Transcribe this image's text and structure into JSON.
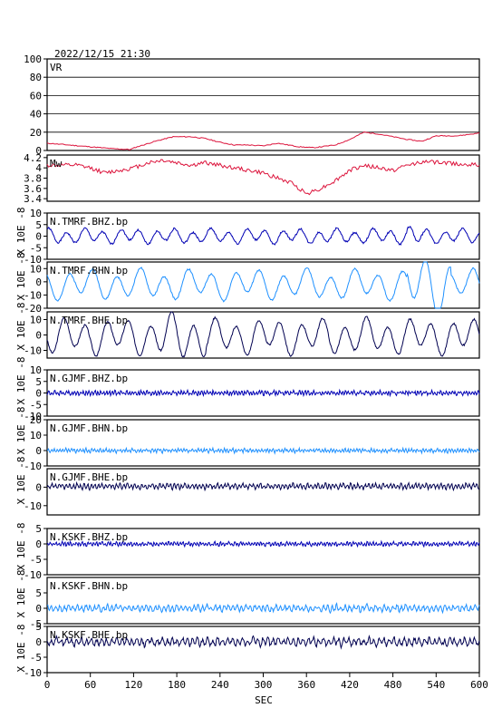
{
  "header": {
    "timestamp": "2022/12/15 21:30"
  },
  "axis": {
    "xlabel": "SEC",
    "xticks": [
      0,
      60,
      120,
      180,
      240,
      300,
      360,
      420,
      480,
      540,
      600
    ],
    "unit_label": "X 10E -8"
  },
  "colors": {
    "vr": "#dc143c",
    "mw": "#dc143c",
    "bhz": "#0000b4",
    "bhn": "#1e90ff",
    "bhe": "#000050"
  },
  "chart_data": [
    {
      "type": "line",
      "title": "VR",
      "ylim": [
        0,
        100
      ],
      "yticks": [
        0,
        20,
        40,
        60,
        80,
        100
      ],
      "grid": true,
      "points": [
        [
          0,
          8
        ],
        [
          30,
          6
        ],
        [
          60,
          4
        ],
        [
          90,
          2
        ],
        [
          115,
          1
        ],
        [
          125,
          4
        ],
        [
          150,
          10
        ],
        [
          175,
          15
        ],
        [
          200,
          15
        ],
        [
          220,
          13
        ],
        [
          240,
          9
        ],
        [
          260,
          6
        ],
        [
          280,
          6
        ],
        [
          300,
          5
        ],
        [
          320,
          8
        ],
        [
          335,
          6
        ],
        [
          350,
          4
        ],
        [
          370,
          3
        ],
        [
          400,
          6
        ],
        [
          420,
          12
        ],
        [
          440,
          20
        ],
        [
          460,
          18
        ],
        [
          480,
          15
        ],
        [
          500,
          12
        ],
        [
          520,
          10
        ],
        [
          540,
          16
        ],
        [
          570,
          16
        ],
        [
          600,
          19
        ]
      ]
    },
    {
      "type": "line",
      "title": "Mw",
      "ylim": [
        3.35,
        4.25
      ],
      "yticks": [
        3.4,
        3.6,
        3.8,
        4.0,
        4.2
      ],
      "points": [
        [
          0,
          4.05
        ],
        [
          40,
          4.05
        ],
        [
          60,
          4.0
        ],
        [
          80,
          3.9
        ],
        [
          100,
          3.95
        ],
        [
          120,
          4.0
        ],
        [
          140,
          4.1
        ],
        [
          160,
          4.15
        ],
        [
          180,
          4.1
        ],
        [
          200,
          4.05
        ],
        [
          220,
          4.1
        ],
        [
          240,
          4.05
        ],
        [
          260,
          4.0
        ],
        [
          280,
          3.95
        ],
        [
          300,
          3.9
        ],
        [
          320,
          3.8
        ],
        [
          340,
          3.7
        ],
        [
          360,
          3.5
        ],
        [
          380,
          3.6
        ],
        [
          400,
          3.75
        ],
        [
          420,
          3.95
        ],
        [
          440,
          4.05
        ],
        [
          460,
          4.0
        ],
        [
          480,
          3.95
        ],
        [
          500,
          4.05
        ],
        [
          520,
          4.12
        ],
        [
          550,
          4.1
        ],
        [
          600,
          4.05
        ]
      ]
    },
    {
      "type": "line",
      "title": "N.TMRF.BHZ.bp",
      "ylim": [
        -10,
        10
      ],
      "yticks": [
        -10,
        -5,
        0,
        5,
        10
      ],
      "amp": 2.5,
      "offset": 0,
      "period": 25,
      "noise": 0.4,
      "seed": 1,
      "burst": [
        [
          500,
          520,
          1.6
        ]
      ]
    },
    {
      "type": "line",
      "title": "N.TMRF.BHN.bp",
      "ylim": [
        -20,
        15
      ],
      "yticks": [
        -20,
        -10,
        0,
        10
      ],
      "amp": 9,
      "offset": -2,
      "period": 33,
      "noise": 0.6,
      "seed": 2,
      "burst": [
        [
          500,
          560,
          1.9
        ]
      ]
    },
    {
      "type": "line",
      "title": "N.TMRF.BHE.bp",
      "ylim": [
        -15,
        15
      ],
      "yticks": [
        -10,
        0,
        10
      ],
      "amp": 9,
      "offset": -1,
      "period": 30,
      "noise": 0.6,
      "seed": 3,
      "burst": [
        [
          150,
          220,
          1.3
        ]
      ]
    },
    {
      "type": "line",
      "title": "N.GJMF.BHZ.bp",
      "ylim": [
        -10,
        10
      ],
      "yticks": [
        -10,
        -5,
        0,
        5,
        10
      ],
      "amp": 0.7,
      "offset": 0,
      "period": 4,
      "noise": 0.5,
      "seed": 4,
      "burst": []
    },
    {
      "type": "line",
      "title": "N.GJMF.BHN.bp",
      "ylim": [
        -10,
        20
      ],
      "yticks": [
        -10,
        0,
        10,
        20
      ],
      "amp": 0.9,
      "offset": 0,
      "period": 4,
      "noise": 0.6,
      "seed": 5,
      "burst": []
    },
    {
      "type": "line",
      "title": "N.GJMF.BHE.bp",
      "ylim": [
        -15,
        10
      ],
      "yticks": [
        -10,
        0
      ],
      "amp": 1.1,
      "offset": 0.5,
      "period": 5,
      "noise": 0.6,
      "seed": 6,
      "burst": []
    },
    {
      "type": "line",
      "title": "N.KSKF.BHZ.bp",
      "ylim": [
        -10,
        5
      ],
      "yticks": [
        -10,
        -5,
        0,
        5
      ],
      "amp": 0.5,
      "offset": 0,
      "period": 4,
      "noise": 0.3,
      "seed": 7,
      "burst": []
    },
    {
      "type": "line",
      "title": "N.KSKF.BHN.bp",
      "ylim": [
        -5,
        10
      ],
      "yticks": [
        -5,
        0,
        5
      ],
      "amp": 0.8,
      "offset": 0,
      "period": 6,
      "noise": 0.5,
      "seed": 8,
      "burst": []
    },
    {
      "type": "line",
      "title": "N.KSKF.BHE.bp",
      "ylim": [
        -10,
        5
      ],
      "yticks": [
        -10,
        -5,
        0,
        5
      ],
      "amp": 1.0,
      "offset": 0,
      "period": 7,
      "noise": 0.6,
      "seed": 9,
      "burst": []
    }
  ]
}
